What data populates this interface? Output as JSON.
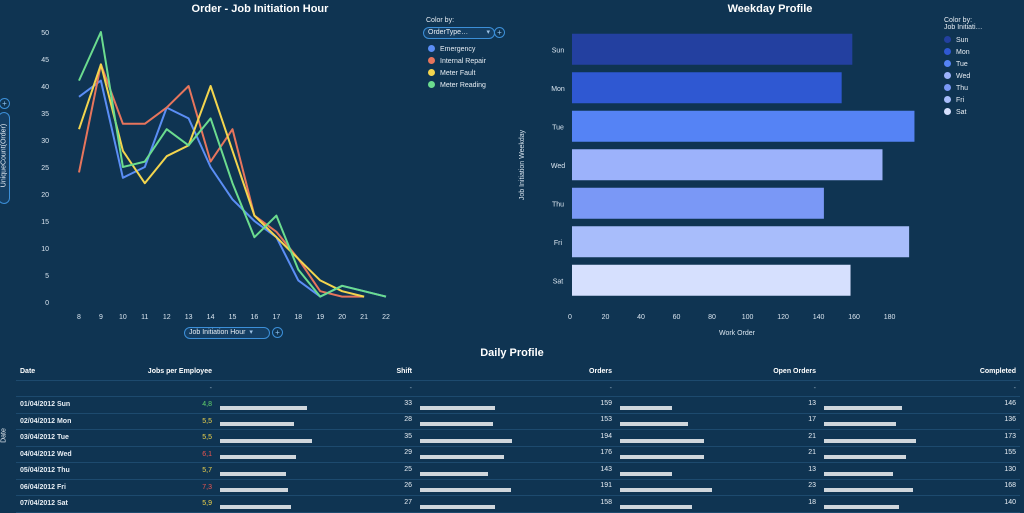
{
  "line_panel": {
    "title": "Order - Job Initiation Hour",
    "x_axis_selector": "Job Initiation Hour",
    "y_axis_selector": "UniqueCount(Order)",
    "color_by_label": "Color by:",
    "color_by_value": "OrderType…",
    "legend": [
      {
        "label": "Emergency",
        "color": "#5b8ef5"
      },
      {
        "label": "Internal Repair",
        "color": "#e7755c"
      },
      {
        "label": "Meter Fault",
        "color": "#f3d54e"
      },
      {
        "label": "Meter Reading",
        "color": "#6bdc8f"
      }
    ]
  },
  "bar_panel": {
    "title": "Weekday Profile",
    "color_by_label": "Color by:",
    "color_by_value": "Job Initiati…",
    "legend": [
      {
        "label": "Sun",
        "color": "#2340a0"
      },
      {
        "label": "Mon",
        "color": "#2f58d2"
      },
      {
        "label": "Tue",
        "color": "#5583f5"
      },
      {
        "label": "Wed",
        "color": "#9cb2fb"
      },
      {
        "label": "Thu",
        "color": "#7a98f6"
      },
      {
        "label": "Fri",
        "color": "#a8bdfb"
      },
      {
        "label": "Sat",
        "color": "#d6e0fe"
      }
    ]
  },
  "table": {
    "title": "Daily Profile",
    "side_label": "Date",
    "headers": [
      "Date",
      "Jobs per Employee",
      "Shift",
      "Orders",
      "Open Orders",
      "Completed"
    ],
    "rows": [
      {
        "date": "01/04/2012 Sun",
        "jpe": "4,8",
        "jpe_color": "#63d46c",
        "shift": "33",
        "orders": "159",
        "open": "13",
        "completed": "146"
      },
      {
        "date": "02/04/2012 Mon",
        "jpe": "5,5",
        "jpe_color": "#f2d64b",
        "shift": "28",
        "orders": "153",
        "open": "17",
        "completed": "136"
      },
      {
        "date": "03/04/2012 Tue",
        "jpe": "5,5",
        "jpe_color": "#f2d64b",
        "shift": "35",
        "orders": "194",
        "open": "21",
        "completed": "173"
      },
      {
        "date": "04/04/2012 Wed",
        "jpe": "6,1",
        "jpe_color": "#f0564f",
        "shift": "29",
        "orders": "176",
        "open": "21",
        "completed": "155"
      },
      {
        "date": "05/04/2012 Thu",
        "jpe": "5,7",
        "jpe_color": "#f2d64b",
        "shift": "25",
        "orders": "143",
        "open": "13",
        "completed": "130"
      },
      {
        "date": "06/04/2012 Fri",
        "jpe": "7,3",
        "jpe_color": "#f0564f",
        "shift": "26",
        "orders": "191",
        "open": "23",
        "completed": "168"
      },
      {
        "date": "07/04/2012 Sat",
        "jpe": "5,9",
        "jpe_color": "#f2d64b",
        "shift": "27",
        "orders": "158",
        "open": "18",
        "completed": "140"
      }
    ]
  },
  "chart_data": [
    {
      "type": "line",
      "title": "Order - Job Initiation Hour",
      "xlabel": "Job Initiation Hour",
      "ylabel": "UniqueCount(Order)",
      "x": [
        8,
        9,
        10,
        11,
        12,
        13,
        14,
        15,
        16,
        17,
        18,
        19,
        20,
        21,
        22
      ],
      "xlim": [
        8,
        22
      ],
      "ylim": [
        0,
        50
      ],
      "yticks": [
        0,
        5,
        10,
        15,
        20,
        25,
        30,
        35,
        40,
        45,
        50
      ],
      "series": [
        {
          "name": "Emergency",
          "color": "#5b8ef5",
          "values": [
            38,
            41,
            23,
            25,
            36,
            34,
            25,
            19,
            15,
            12,
            4,
            1,
            3,
            null,
            1
          ]
        },
        {
          "name": "Internal Repair",
          "color": "#e7755c",
          "values": [
            24,
            44,
            33,
            33,
            36,
            40,
            26,
            32,
            16,
            13,
            8,
            2,
            1,
            1,
            null
          ]
        },
        {
          "name": "Meter Fault",
          "color": "#f3d54e",
          "values": [
            32,
            44,
            28,
            22,
            27,
            29,
            40,
            28,
            16,
            12,
            8,
            4,
            2,
            1,
            null
          ]
        },
        {
          "name": "Meter Reading",
          "color": "#6bdc8f",
          "values": [
            41,
            50,
            25,
            26,
            32,
            29,
            34,
            22,
            12,
            16,
            6,
            1,
            3,
            2,
            1
          ]
        }
      ],
      "legend_position": "right"
    },
    {
      "type": "bar",
      "orientation": "horizontal",
      "title": "Weekday Profile",
      "xlabel": "Work Order",
      "ylabel": "Job Initiation Weekday",
      "categories": [
        "Sun",
        "Mon",
        "Tue",
        "Wed",
        "Thu",
        "Fri",
        "Sat"
      ],
      "values": [
        159,
        153,
        194,
        176,
        143,
        191,
        158
      ],
      "colors": [
        "#2340a0",
        "#2f58d2",
        "#5583f5",
        "#9cb2fb",
        "#7a98f6",
        "#a8bdfb",
        "#d6e0fe"
      ],
      "xlim": [
        0,
        196
      ],
      "xticks": [
        0,
        20,
        40,
        60,
        80,
        100,
        120,
        140,
        160,
        180
      ],
      "legend_position": "right"
    }
  ]
}
